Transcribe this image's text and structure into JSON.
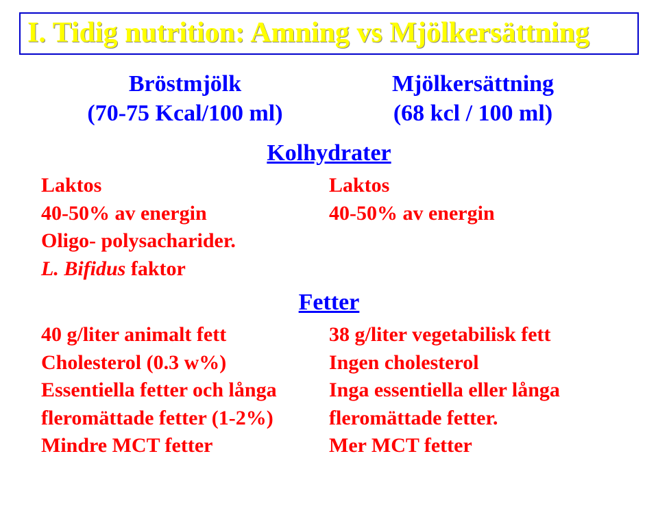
{
  "title": "I. Tidig nutrition: Amning vs Mjölkersättning",
  "header": {
    "left_title": "Bröstmjölk",
    "left_sub": "(70-75 Kcal/100 ml)",
    "right_title": "Mjölkersättning",
    "right_sub": "(68 kcl / 100 ml)"
  },
  "section1": {
    "heading": "Kolhydrater",
    "left": {
      "l1": "Laktos",
      "l2": "40-50% av energin",
      "l3": "Oligo- polysacharider.",
      "l4_i": "L. Bifidus",
      "l4_r": " faktor"
    },
    "right": {
      "l1": "Laktos",
      "l2": "40-50% av energin"
    }
  },
  "section2": {
    "heading": "Fetter",
    "left": {
      "l1": "40 g/liter animalt fett",
      "l2": "Cholesterol (0.3 w%)",
      "l3": "Essentiella fetter och långa",
      "l4": "fleromättade fetter (1-2%)",
      "l5": "Mindre MCT fetter"
    },
    "right": {
      "l1": "38 g/liter vegetabilisk fett",
      "l2": "Ingen cholesterol",
      "l3": "Inga essentiella eller långa",
      "l4": "fleromättade fetter.",
      "l5": "Mer MCT fetter"
    }
  },
  "colors": {
    "title_border": "#0000cc",
    "title_text": "#ffff00",
    "blue": "#0000ff",
    "red": "#ff0000",
    "bg": "#ffffff"
  }
}
